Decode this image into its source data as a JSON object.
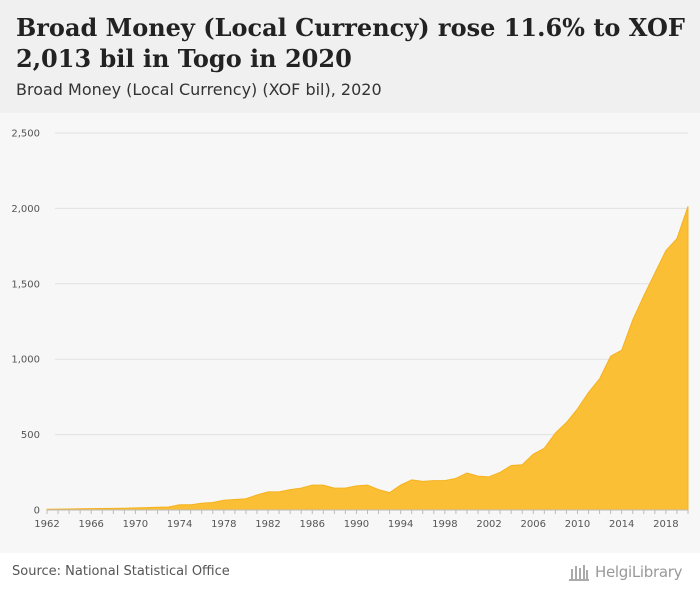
{
  "header": {
    "title": "Broad Money (Local Currency) rose 11.6% to XOF 2,013 bil in Togo in 2020",
    "subtitle": "Broad Money (Local Currency) (XOF bil), 2020"
  },
  "footer": {
    "source": "Source: National Statistical Office",
    "logo_text": "HelgiLibrary"
  },
  "colors": {
    "area": "#fbbf35",
    "area_stroke": "#f5b21f",
    "grid": "#e2e2e2"
  },
  "chart_data": {
    "type": "area",
    "ylim": [
      0,
      2500
    ],
    "xlim": [
      1962,
      2020
    ],
    "yticks": [
      0,
      500,
      1000,
      1500,
      2000,
      2500
    ],
    "ytick_labels": [
      "0",
      "500",
      "1,000",
      "1,500",
      "2,000",
      "2,500"
    ],
    "xticks": [
      1962,
      1966,
      1970,
      1974,
      1978,
      1982,
      1986,
      1990,
      1994,
      1998,
      2002,
      2006,
      2010,
      2014,
      2018
    ],
    "series": [
      {
        "x": [
          1962,
          1963,
          1964,
          1965,
          1966,
          1967,
          1968,
          1969,
          1970,
          1971,
          1972,
          1973,
          1974,
          1975,
          1976,
          1977,
          1978,
          1979,
          1980,
          1981,
          1982,
          1983,
          1984,
          1985,
          1986,
          1987,
          1988,
          1989,
          1990,
          1991,
          1992,
          1993,
          1994,
          1995,
          1996,
          1997,
          1998,
          1999,
          2000,
          2001,
          2002,
          2003,
          2004,
          2005,
          2006,
          2007,
          2008,
          2009,
          2010,
          2011,
          2012,
          2013,
          2014,
          2015,
          2016,
          2017,
          2018,
          2019,
          2020
        ],
        "values": [
          5,
          6,
          7,
          8,
          9,
          10,
          11,
          12,
          14,
          16,
          18,
          20,
          35,
          35,
          45,
          50,
          65,
          70,
          75,
          100,
          120,
          120,
          135,
          145,
          165,
          165,
          145,
          145,
          160,
          165,
          135,
          115,
          165,
          200,
          190,
          195,
          195,
          210,
          245,
          225,
          220,
          250,
          295,
          300,
          370,
          410,
          510,
          580,
          670,
          780,
          870,
          1020,
          1060,
          1260,
          1420,
          1570,
          1720,
          1800,
          2013
        ]
      }
    ]
  }
}
